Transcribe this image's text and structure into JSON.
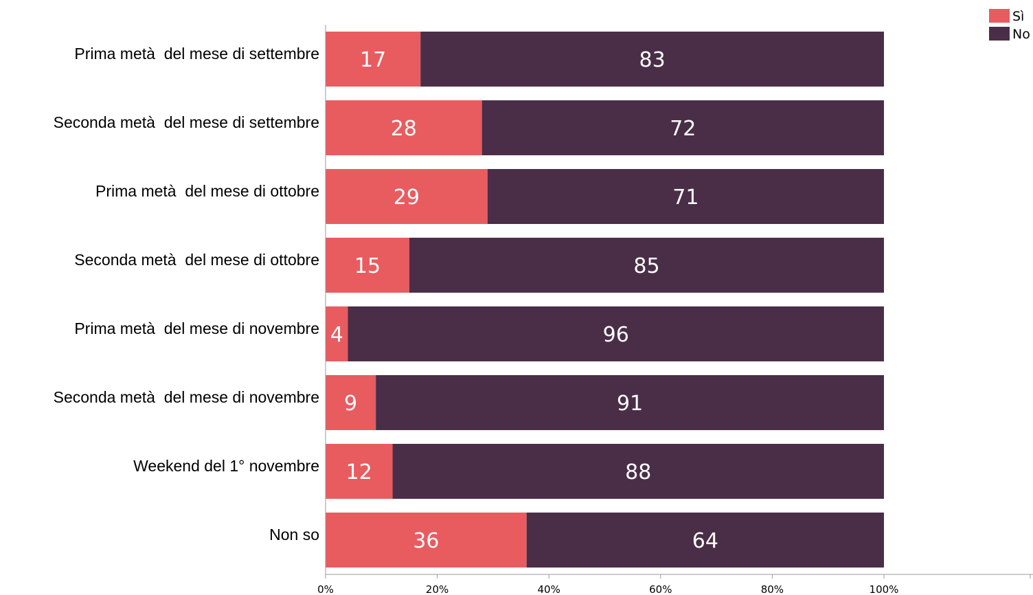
{
  "chart_data": {
    "type": "bar",
    "orientation": "horizontal",
    "stacked": true,
    "percent": true,
    "categories": [
      "Prima metà  del mese di settembre",
      "Seconda metà  del mese di settembre",
      "Prima metà  del mese di ottobre",
      "Seconda metà  del mese di ottobre",
      "Prima metà  del mese di novembre",
      "Seconda metà  del mese di novembre",
      "Weekend del 1° novembre",
      "Non so"
    ],
    "series": [
      {
        "name": "Sì",
        "color": "#e85c5f",
        "values": [
          17,
          28,
          29,
          15,
          4,
          9,
          12,
          36
        ]
      },
      {
        "name": "No",
        "color": "#4a2e48",
        "values": [
          83,
          72,
          71,
          85,
          96,
          91,
          88,
          64
        ]
      }
    ],
    "xlim": [
      0,
      100
    ],
    "xticks": [
      "0%",
      "20%",
      "40%",
      "60%",
      "80%",
      "100%"
    ],
    "legend_position": "top-right",
    "grid": false
  }
}
